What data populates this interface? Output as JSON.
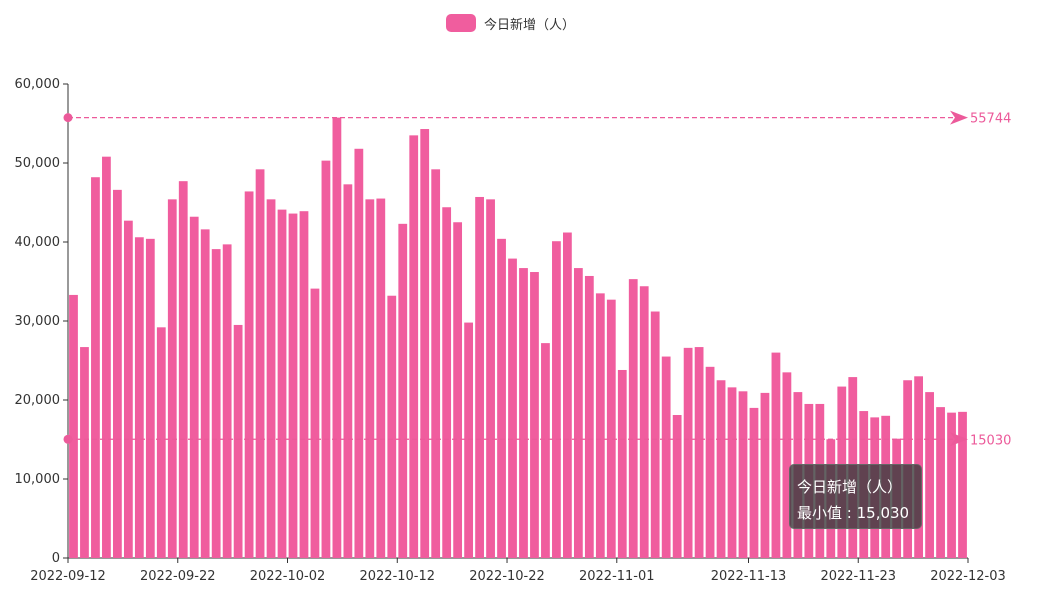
{
  "legend": {
    "label": "今日新增（人）"
  },
  "tooltip": {
    "series": "今日新增（人）",
    "label": "最小值",
    "value": "15,030"
  },
  "colors": {
    "bar": "#f05d9e",
    "axis": "#333333",
    "markline": "#ec5a9a"
  },
  "chart_data": {
    "type": "bar",
    "start_date": "2022-09-12",
    "x_tick_labels": [
      "2022-09-12",
      "2022-09-22",
      "2022-10-02",
      "2022-10-12",
      "2022-10-22",
      "2022-11-01",
      "2022-11-13",
      "2022-11-23",
      "2022-12-03"
    ],
    "y_tick_labels": [
      "0",
      "10,000",
      "20,000",
      "30,000",
      "40,000",
      "50,000",
      "60,000"
    ],
    "ylim": [
      0,
      60000
    ],
    "series": [
      {
        "name": "今日新增（人）",
        "values": [
          33300,
          26700,
          48200,
          50800,
          46600,
          42700,
          40600,
          40400,
          29200,
          45400,
          47700,
          43200,
          41600,
          39100,
          39700,
          29500,
          46400,
          49200,
          45400,
          44100,
          43600,
          43900,
          34100,
          50300,
          55744,
          47300,
          51800,
          45400,
          45500,
          33200,
          42300,
          53500,
          54300,
          49200,
          44400,
          42500,
          29800,
          45700,
          45400,
          40400,
          37900,
          36700,
          36200,
          27200,
          40100,
          41200,
          36700,
          35700,
          33500,
          32700,
          23800,
          35300,
          34400,
          31200,
          25500,
          18100,
          26600,
          26700,
          24200,
          22500,
          21600,
          21100,
          19000,
          20900,
          26000,
          23500,
          21000,
          19500,
          19500,
          15030,
          21700,
          22900,
          18600,
          17800,
          18000,
          15100,
          22500,
          23000,
          21000,
          19100,
          18400,
          18500
        ]
      }
    ],
    "mark_lines": [
      {
        "label": "55744",
        "value": 55744
      },
      {
        "label": "15030",
        "value": 15030
      }
    ],
    "legend_position": "top-center",
    "grid": false
  }
}
